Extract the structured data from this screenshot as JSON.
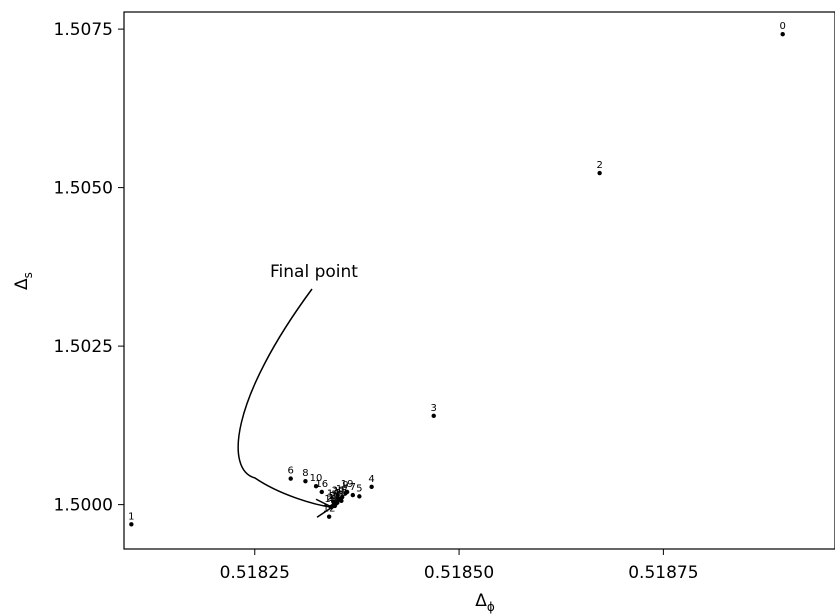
{
  "chart_data": {
    "type": "scatter",
    "title": "",
    "xlabel_base": "Δ",
    "xlabel_sub": "ϕ",
    "ylabel_base": "Δ",
    "ylabel_sub": "s",
    "xlim": [
      0.51809,
      0.51896
    ],
    "ylim": [
      1.4993,
      1.50777
    ],
    "xticks": [
      0.51825,
      0.5185,
      0.51875
    ],
    "xtick_labels": [
      "0.51825",
      "0.51850",
      "0.51875"
    ],
    "yticks": [
      1.5,
      1.5025,
      1.505,
      1.5075
    ],
    "ytick_labels": [
      "1.5000",
      "1.5025",
      "1.5050",
      "1.5075"
    ],
    "grid": false,
    "point_color": "#000000",
    "points": [
      {
        "label": "0",
        "x": 0.518896,
        "y": 1.50742
      },
      {
        "label": "1",
        "x": 0.518099,
        "y": 1.49969
      },
      {
        "label": "2",
        "x": 0.518672,
        "y": 1.50523
      },
      {
        "label": "3",
        "x": 0.518469,
        "y": 1.5014
      },
      {
        "label": "4",
        "x": 0.518393,
        "y": 1.50028
      },
      {
        "label": "5",
        "x": 0.518378,
        "y": 1.50013
      },
      {
        "label": "6",
        "x": 0.518294,
        "y": 1.50041
      },
      {
        "label": "7",
        "x": 0.51837,
        "y": 1.50015
      },
      {
        "label": "8",
        "x": 0.518312,
        "y": 1.50037
      },
      {
        "label": "9",
        "x": 0.518361,
        "y": 1.50018
      },
      {
        "label": "10",
        "x": 0.518325,
        "y": 1.50029
      },
      {
        "label": "11",
        "x": 0.518353,
        "y": 1.50008
      },
      {
        "label": "12",
        "x": 0.518341,
        "y": 1.49981
      },
      {
        "label": "13",
        "x": 0.518351,
        "y": 1.50003
      },
      {
        "label": "14",
        "x": 0.518346,
        "y": 1.50005
      },
      {
        "label": "15",
        "x": 0.518348,
        "y": 1.49998
      },
      {
        "label": "16",
        "x": 0.518332,
        "y": 1.5002
      },
      {
        "label": "17",
        "x": 0.518357,
        "y": 1.50012
      },
      {
        "label": "18",
        "x": 0.518343,
        "y": 1.49996
      },
      {
        "label": "19",
        "x": 0.518363,
        "y": 1.5002
      },
      {
        "label": "20",
        "x": 0.518352,
        "y": 1.5001
      },
      {
        "label": "21",
        "x": 0.518349,
        "y": 1.50001
      },
      {
        "label": "22",
        "x": 0.518346,
        "y": 1.49999
      },
      {
        "label": "23",
        "x": 0.518356,
        "y": 1.50006
      }
    ],
    "annotation": {
      "text": "Final point",
      "target": {
        "x": 0.518347,
        "y": 1.49999
      }
    }
  }
}
